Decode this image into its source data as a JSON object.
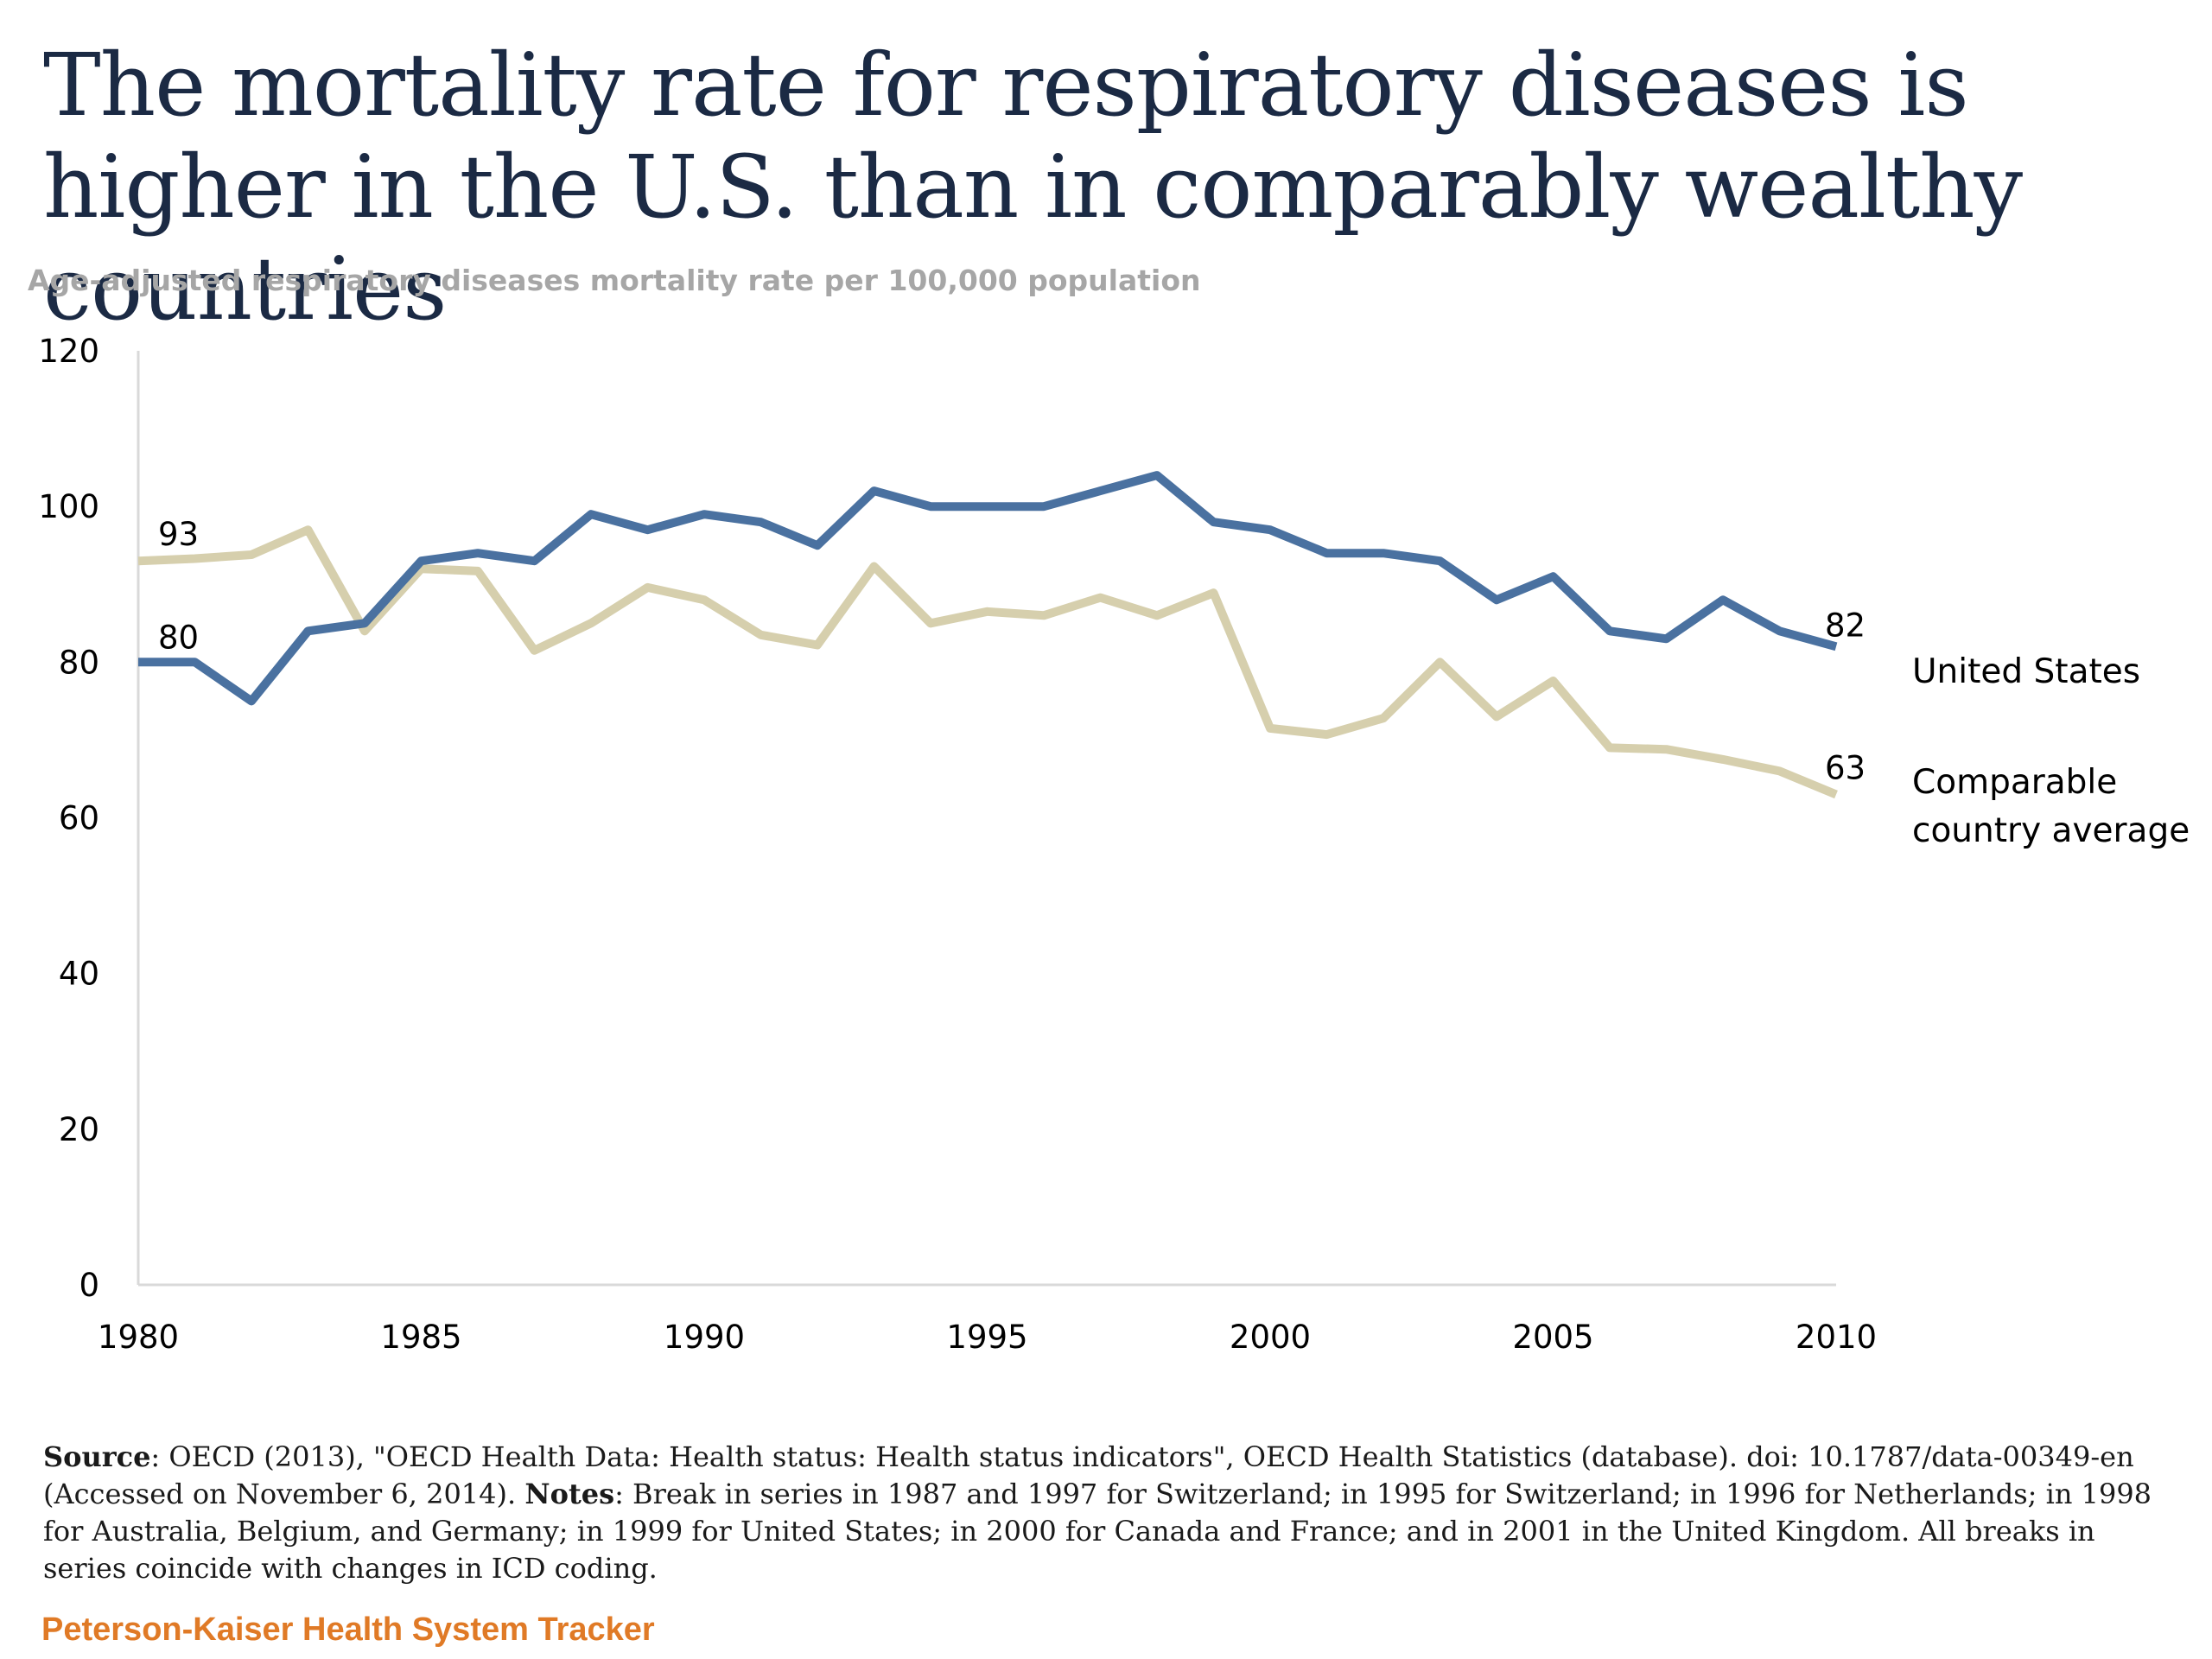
{
  "title": "The mortality rate for respiratory diseases is higher in the U.S. than in comparably wealthy countries",
  "subtitle": "Age-adjusted respiratory diseases mortality rate per 100,000 population",
  "footnote": {
    "source_label": "Source",
    "source_text": ": OECD (2013), \"OECD Health Data: Health status: Health status indicators\", OECD Health Statistics (database). doi: 10.1787/data-00349-en (Accessed on November 6, 2014). ",
    "notes_label": "Notes",
    "notes_text": ": Break in series in 1987 and 1997 for Switzerland;  in 1995 for Switzerland; in 1996 for Netherlands; in 1998 for Australia, Belgium, and Germany; in 1999 for United States;  in 2000 for Canada and France; and in 2001 in the United Kingdom. All breaks in series coincide with  changes in ICD coding."
  },
  "brand": "Peterson-Kaiser Health System Tracker",
  "colors": {
    "us": "#4a71a0",
    "comparable": "#d6cfad",
    "axis": "#d9d9d9",
    "text": "#000000"
  },
  "chart_data": {
    "type": "line",
    "xlabel": "",
    "ylabel": "",
    "xlim": [
      1980,
      2010
    ],
    "ylim": [
      0,
      120
    ],
    "x_ticks": [
      1980,
      1985,
      1990,
      1995,
      2000,
      2005,
      2010
    ],
    "y_ticks": [
      0,
      20,
      40,
      60,
      80,
      100,
      120
    ],
    "x": [
      1980,
      1981,
      1982,
      1983,
      1984,
      1985,
      1986,
      1987,
      1988,
      1989,
      1990,
      1991,
      1992,
      1993,
      1994,
      1995,
      1996,
      1997,
      1998,
      1999,
      2000,
      2001,
      2002,
      2003,
      2004,
      2005,
      2006,
      2007,
      2008,
      2009,
      2010
    ],
    "grid": false,
    "series": [
      {
        "name": "United States",
        "color": "#4a71a0",
        "values": [
          80,
          80,
          75,
          84,
          85,
          93,
          94,
          93,
          99,
          97,
          99,
          98,
          95,
          102,
          100,
          100,
          100,
          102,
          104,
          98,
          97,
          94,
          94,
          93,
          88,
          91,
          84,
          83,
          88,
          84,
          82
        ],
        "start_label": "80",
        "end_label": "82"
      },
      {
        "name": "Comparable country average",
        "legend_lines": [
          "Comparable",
          "country average"
        ],
        "color": "#d6cfad",
        "values": [
          93,
          93.3,
          93.8,
          97,
          84,
          92,
          91.7,
          81.5,
          85,
          89.6,
          88,
          83.5,
          82.2,
          92.3,
          85,
          86.5,
          86,
          88.3,
          86,
          88.9,
          71.5,
          70.7,
          72.8,
          80,
          73,
          77.6,
          69,
          68.8,
          67.5,
          66,
          63
        ],
        "start_label": "93",
        "end_label": "63"
      }
    ]
  }
}
